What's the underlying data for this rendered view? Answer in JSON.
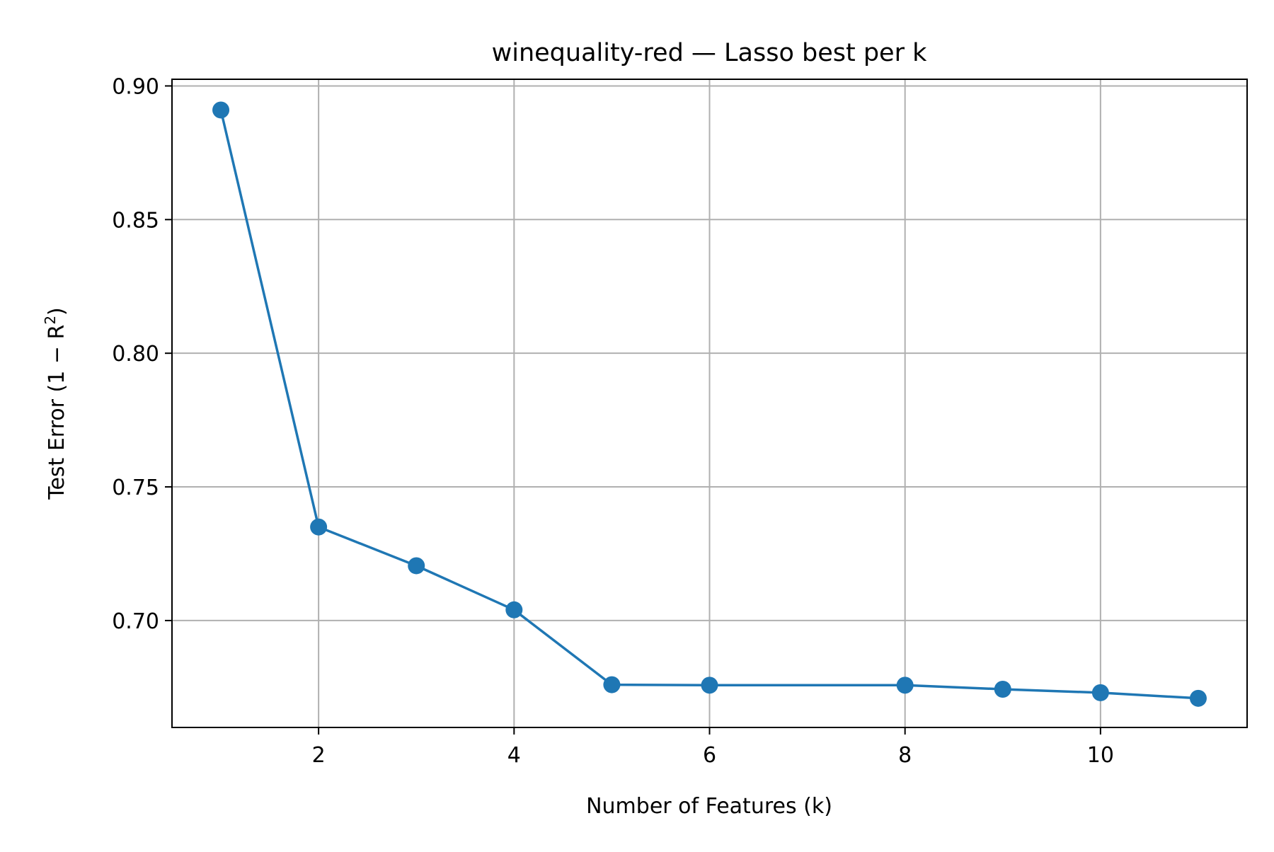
{
  "chart_data": {
    "type": "line",
    "title": "winequality-red — Lasso best per k",
    "xlabel": "Number of Features (k)",
    "ylabel_main": "Test Error (1 − R",
    "ylabel_sup": "2",
    "ylabel_close": ")",
    "xlim": [
      0.5,
      11.5
    ],
    "ylim": [
      0.66,
      0.9025
    ],
    "xticks": [
      2,
      4,
      6,
      8,
      10
    ],
    "yticks": [
      0.7,
      0.75,
      0.8,
      0.85,
      0.9
    ],
    "ytick_labels": [
      "0.70",
      "0.75",
      "0.80",
      "0.85",
      "0.90"
    ],
    "grid": true,
    "x": [
      1,
      2,
      3,
      4,
      5,
      6,
      8,
      9,
      10,
      11
    ],
    "y": [
      0.891,
      0.735,
      0.7205,
      0.704,
      0.676,
      0.6758,
      0.6758,
      0.6743,
      0.673,
      0.6709
    ],
    "series_color": "#1f77b4"
  }
}
